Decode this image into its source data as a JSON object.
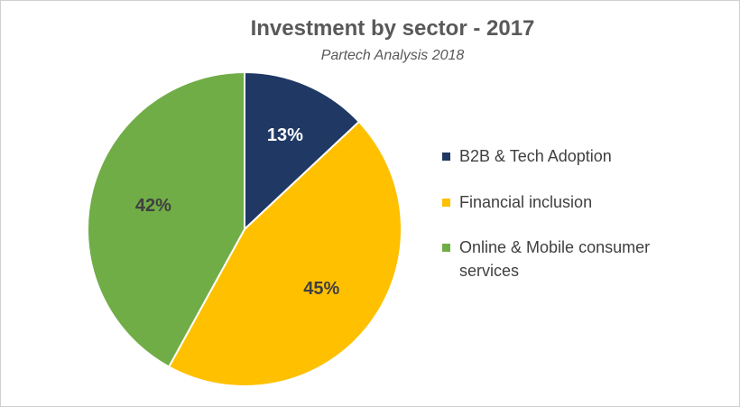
{
  "chart_data": {
    "type": "pie",
    "title": "Investment by sector - 2017",
    "subtitle": "Partech Analysis 2018",
    "legend_position": "right",
    "slices": [
      {
        "label": "B2B & Tech Adoption",
        "value": 13,
        "value_label": "13%",
        "color": "#1f3864",
        "label_color": "#ffffff"
      },
      {
        "label": "Financial inclusion",
        "value": 45,
        "value_label": "45%",
        "color": "#ffc000",
        "label_color": "#404040"
      },
      {
        "label": "Online & Mobile consumer services",
        "value": 42,
        "value_label": "42%",
        "color": "#70ad47",
        "label_color": "#404040"
      }
    ]
  }
}
